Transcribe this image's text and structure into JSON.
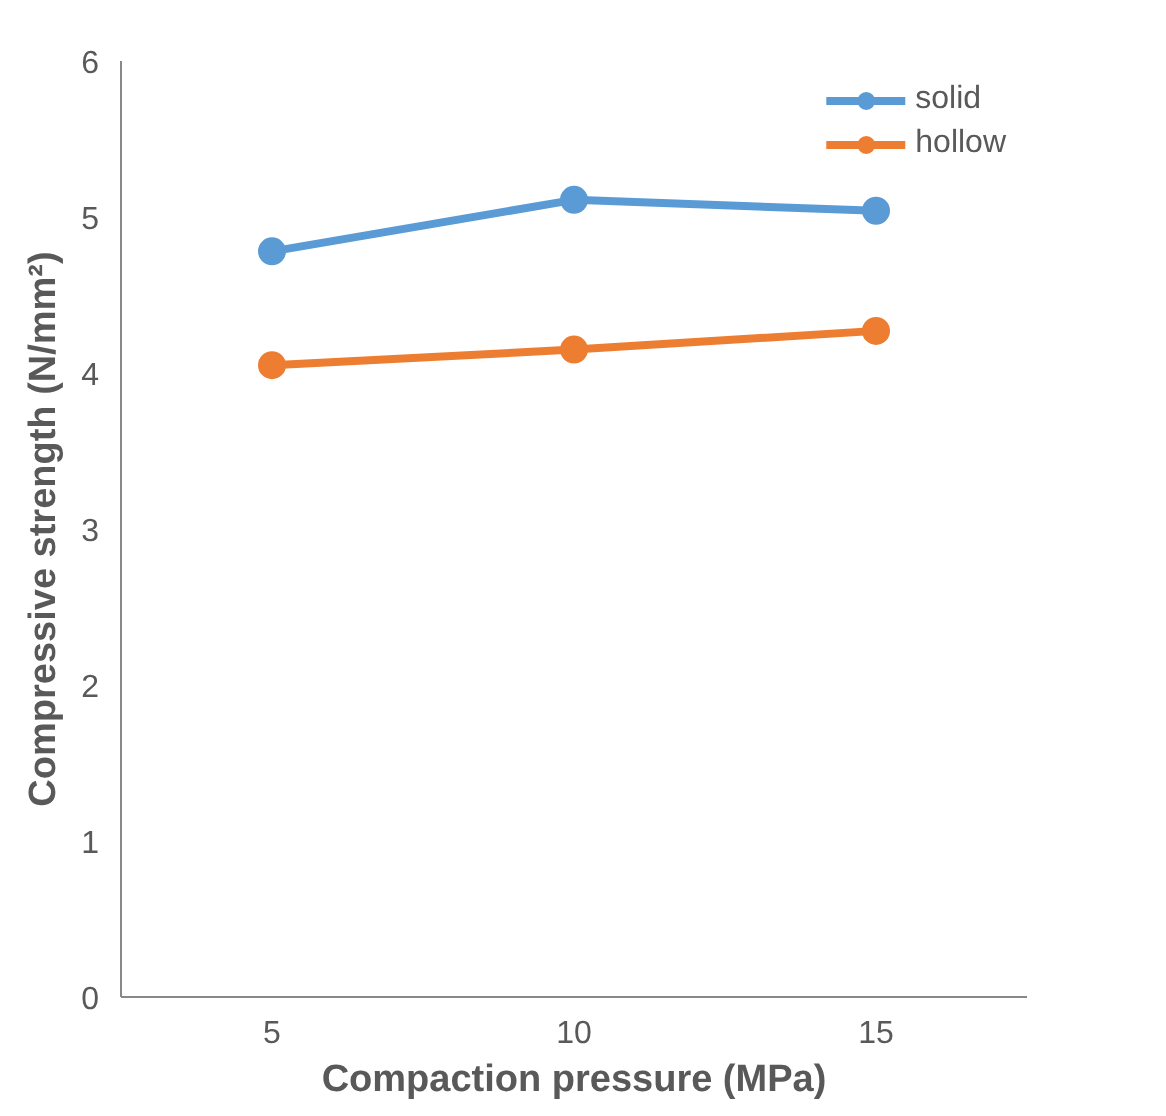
{
  "chart_data": {
    "type": "line",
    "xlabel": "Compaction pressure (MPa)",
    "ylabel": "Compressive strength (N/mm²)",
    "categories": [
      "5",
      "10",
      "15"
    ],
    "series": [
      {
        "name": "solid",
        "color": "#5b9bd5",
        "values": [
          4.78,
          5.11,
          5.04
        ]
      },
      {
        "name": "hollow",
        "color": "#ed7d31",
        "values": [
          4.05,
          4.15,
          4.27
        ]
      }
    ],
    "ylim": [
      0,
      6
    ],
    "yticks": [
      0,
      1,
      2,
      3,
      4,
      5,
      6
    ],
    "grid": false,
    "legend": "top right",
    "marker": "circle",
    "line_style": "solid"
  }
}
